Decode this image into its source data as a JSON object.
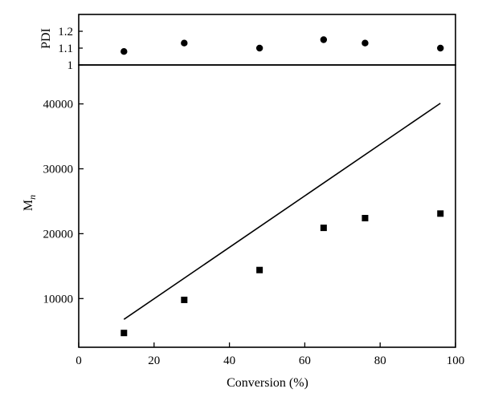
{
  "chart_data": {
    "type": "scatter",
    "xlabel": "Conversion (%)",
    "xlim": [
      0,
      100
    ],
    "xticks": [
      0,
      20,
      40,
      60,
      80,
      100
    ],
    "panels": {
      "pdi": {
        "ylabel": "PDI",
        "ylim": [
          1.0,
          1.3
        ],
        "yticks": [
          1.0,
          1.1,
          1.2
        ],
        "ytick_labels": [
          "1",
          "1.1",
          "1.2"
        ],
        "marker": "circle",
        "x": [
          12,
          28,
          48,
          65,
          76,
          96
        ],
        "y": [
          1.08,
          1.13,
          1.1,
          1.15,
          1.13,
          1.1
        ]
      },
      "mn": {
        "ylabel": "Mn",
        "ylabel_main": "M",
        "ylabel_sub": "n",
        "ylim": [
          2500,
          46000
        ],
        "yticks": [
          10000,
          20000,
          30000,
          40000
        ],
        "ytick_labels": [
          "10000",
          "20000",
          "30000",
          "40000"
        ],
        "marker": "square",
        "x": [
          12,
          28,
          48,
          65,
          76,
          96
        ],
        "y": [
          4700,
          9800,
          14400,
          20900,
          22400,
          23100
        ],
        "line": {
          "x": [
            12,
            96
          ],
          "y": [
            6800,
            40100
          ]
        }
      }
    }
  }
}
